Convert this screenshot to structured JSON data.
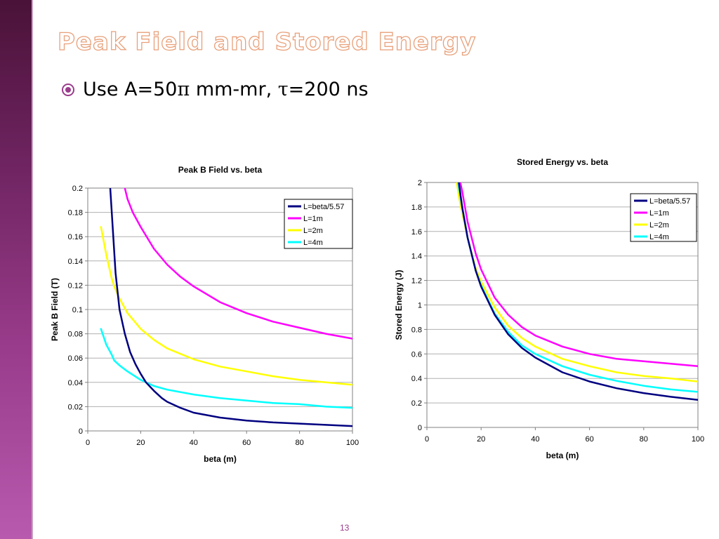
{
  "slide": {
    "title": "Peak Field and Stored Energy",
    "bullet": {
      "prefix": "Use A=50",
      "pi": "π",
      "middle": " mm-mr, ",
      "tau": "τ",
      "suffix": "=200 ns"
    },
    "page_number": "13"
  },
  "colors": {
    "L=beta/5.57": "#000080",
    "L=1m": "#ff00ff",
    "L=2m": "#ffff00",
    "L=4m": "#00ffff",
    "accent": "#9a3c8c"
  },
  "chart_data": [
    {
      "type": "line",
      "title": "Peak B Field vs. beta",
      "xlabel": "beta (m)",
      "ylabel": "Peak B Field (T)",
      "xlim": [
        0,
        100
      ],
      "ylim": [
        0,
        0.2
      ],
      "xticks": [
        "0",
        "20",
        "40",
        "60",
        "80",
        "100"
      ],
      "yticks": [
        "0",
        "0.02",
        "0.04",
        "0.06",
        "0.08",
        "0.1",
        "0.12",
        "0.14",
        "0.16",
        "0.18",
        "0.2"
      ],
      "grid": "horizontal",
      "legend_position": "top-right",
      "series": [
        {
          "name": "L=beta/5.57",
          "color": "#000080",
          "points": [
            [
              8.5,
              0.2
            ],
            [
              9.5,
              0.165
            ],
            [
              10.5,
              0.13
            ],
            [
              12,
              0.1
            ],
            [
              14,
              0.08
            ],
            [
              16,
              0.065
            ],
            [
              18,
              0.055
            ],
            [
              20,
              0.047
            ],
            [
              22,
              0.04
            ],
            [
              25,
              0.033
            ],
            [
              28,
              0.027
            ],
            [
              30,
              0.024
            ],
            [
              35,
              0.019
            ],
            [
              40,
              0.015
            ],
            [
              50,
              0.011
            ],
            [
              60,
              0.0085
            ],
            [
              70,
              0.007
            ],
            [
              80,
              0.006
            ],
            [
              90,
              0.005
            ],
            [
              100,
              0.004
            ]
          ]
        },
        {
          "name": "L=1m",
          "color": "#ff00ff",
          "points": [
            [
              14,
              0.2
            ],
            [
              15,
              0.191
            ],
            [
              17,
              0.18
            ],
            [
              20,
              0.168
            ],
            [
              25,
              0.15
            ],
            [
              30,
              0.137
            ],
            [
              35,
              0.127
            ],
            [
              40,
              0.119
            ],
            [
              50,
              0.106
            ],
            [
              60,
              0.097
            ],
            [
              70,
              0.09
            ],
            [
              80,
              0.085
            ],
            [
              90,
              0.08
            ],
            [
              100,
              0.076
            ]
          ]
        },
        {
          "name": "L=2m",
          "color": "#ffff00",
          "points": [
            [
              5,
              0.168
            ],
            [
              7,
              0.145
            ],
            [
              9,
              0.126
            ],
            [
              10,
              0.119
            ],
            [
              12,
              0.109
            ],
            [
              15,
              0.097
            ],
            [
              20,
              0.084
            ],
            [
              25,
              0.075
            ],
            [
              30,
              0.068
            ],
            [
              40,
              0.059
            ],
            [
              50,
              0.053
            ],
            [
              60,
              0.049
            ],
            [
              70,
              0.045
            ],
            [
              80,
              0.042
            ],
            [
              90,
              0.04
            ],
            [
              100,
              0.038
            ]
          ]
        },
        {
          "name": "L=4m",
          "color": "#00ffff",
          "points": [
            [
              5,
              0.084
            ],
            [
              7,
              0.071
            ],
            [
              9,
              0.063
            ],
            [
              10,
              0.058
            ],
            [
              12,
              0.054
            ],
            [
              15,
              0.049
            ],
            [
              20,
              0.042
            ],
            [
              25,
              0.037
            ],
            [
              30,
              0.034
            ],
            [
              40,
              0.03
            ],
            [
              50,
              0.027
            ],
            [
              60,
              0.025
            ],
            [
              70,
              0.023
            ],
            [
              80,
              0.022
            ],
            [
              90,
              0.02
            ],
            [
              100,
              0.019
            ]
          ]
        }
      ]
    },
    {
      "type": "line",
      "title": "Stored Energy vs. beta",
      "xlabel": "beta (m)",
      "ylabel": "Stored Energy (J)",
      "xlim": [
        0,
        100
      ],
      "ylim": [
        0,
        2
      ],
      "xticks": [
        "0",
        "20",
        "40",
        "60",
        "80",
        "100"
      ],
      "yticks": [
        "0",
        "0.2",
        "0.4",
        "0.6",
        "0.8",
        "1",
        "1.2",
        "1.4",
        "1.6",
        "1.8",
        "2"
      ],
      "grid": "horizontal",
      "legend_position": "top-right",
      "series": [
        {
          "name": "L=beta/5.57",
          "color": "#000080",
          "points": [
            [
              11.8,
              2
            ],
            [
              13,
              1.8
            ],
            [
              15,
              1.55
            ],
            [
              18,
              1.28
            ],
            [
              20,
              1.15
            ],
            [
              25,
              0.92
            ],
            [
              30,
              0.76
            ],
            [
              35,
              0.65
            ],
            [
              40,
              0.57
            ],
            [
              50,
              0.45
            ],
            [
              60,
              0.375
            ],
            [
              70,
              0.32
            ],
            [
              80,
              0.28
            ],
            [
              90,
              0.25
            ],
            [
              100,
              0.225
            ]
          ]
        },
        {
          "name": "L=1m",
          "color": "#ff00ff",
          "points": [
            [
              12.3,
              2
            ],
            [
              13,
              1.93
            ],
            [
              15,
              1.68
            ],
            [
              18,
              1.42
            ],
            [
              20,
              1.29
            ],
            [
              25,
              1.06
            ],
            [
              30,
              0.92
            ],
            [
              35,
              0.82
            ],
            [
              40,
              0.75
            ],
            [
              50,
              0.66
            ],
            [
              60,
              0.6
            ],
            [
              70,
              0.56
            ],
            [
              80,
              0.54
            ],
            [
              90,
              0.52
            ],
            [
              100,
              0.5
            ]
          ]
        },
        {
          "name": "L=2m",
          "color": "#ffff00",
          "points": [
            [
              11,
              2
            ],
            [
              12,
              1.86
            ],
            [
              15,
              1.55
            ],
            [
              18,
              1.3
            ],
            [
              20,
              1.19
            ],
            [
              25,
              0.98
            ],
            [
              30,
              0.83
            ],
            [
              35,
              0.73
            ],
            [
              40,
              0.66
            ],
            [
              50,
              0.56
            ],
            [
              60,
              0.5
            ],
            [
              70,
              0.45
            ],
            [
              80,
              0.42
            ],
            [
              90,
              0.4
            ],
            [
              100,
              0.375
            ]
          ]
        },
        {
          "name": "L=4m",
          "color": "#00ffff",
          "points": [
            [
              11.5,
              2
            ],
            [
              13,
              1.8
            ],
            [
              15,
              1.55
            ],
            [
              18,
              1.28
            ],
            [
              20,
              1.16
            ],
            [
              25,
              0.93
            ],
            [
              30,
              0.78
            ],
            [
              35,
              0.67
            ],
            [
              40,
              0.6
            ],
            [
              50,
              0.5
            ],
            [
              60,
              0.43
            ],
            [
              70,
              0.38
            ],
            [
              80,
              0.34
            ],
            [
              90,
              0.31
            ],
            [
              100,
              0.29
            ]
          ]
        }
      ]
    }
  ]
}
